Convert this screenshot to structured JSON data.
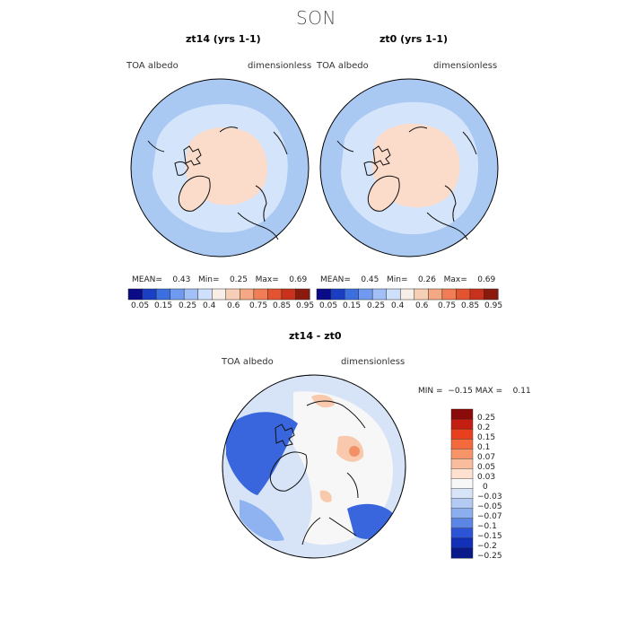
{
  "figure": {
    "title": "SON"
  },
  "panels": [
    {
      "id": "zt14",
      "title": "zt14 (yrs 1-1)",
      "variable": "TOA albedo",
      "units": "dimensionless",
      "stats": {
        "mean_label": "MEAN=",
        "mean": "0.43",
        "min_label": "Min=",
        "min": "0.25",
        "max_label": "Max=",
        "max": "0.69"
      }
    },
    {
      "id": "zt0",
      "title": "zt0 (yrs 1-1)",
      "variable": "TOA albedo",
      "units": "dimensionless",
      "stats": {
        "mean_label": "MEAN=",
        "mean": "0.45",
        "min_label": "Min=",
        "min": "0.26",
        "max_label": "Max=",
        "max": "0.69"
      }
    }
  ],
  "shared_colorbar": {
    "colors": [
      "#0b0b8a",
      "#1a3fc4",
      "#3b6fe0",
      "#6f9af0",
      "#a2c0f6",
      "#cfe0fb",
      "#f7eee8",
      "#f7cfb6",
      "#f4a884",
      "#f07d55",
      "#e4532f",
      "#c8321c",
      "#8b1a0e"
    ],
    "labels": [
      "0.05",
      "0.15",
      "0.25",
      "0.4",
      "0.6",
      "0.75",
      "0.85",
      "0.95"
    ]
  },
  "diff_panel": {
    "title": "zt14 - zt0",
    "variable": "TOA albedo",
    "units": "dimensionless",
    "stats_text": "MIN =  −0.15 MAX =    0.11",
    "colorbar": {
      "colors": [
        "#8b0a0a",
        "#c41e12",
        "#e8401e",
        "#f56a3c",
        "#f89568",
        "#f9bc9c",
        "#fde0cf",
        "#f7f7f7",
        "#d7e4f8",
        "#b3cbf3",
        "#8aaeee",
        "#5c86e6",
        "#2c54d6",
        "#1230b8",
        "#0a1a8a"
      ],
      "labels": [
        "0.25",
        "0.2",
        "0.15",
        "0.1",
        "0.07",
        "0.05",
        "0.03",
        "0",
        "−0.03",
        "−0.05",
        "−0.07",
        "−0.1",
        "−0.15",
        "−0.2",
        "−0.25"
      ]
    }
  },
  "map_colors": {
    "ocean_blue": "#a9c8f2",
    "light_blue": "#d4e5fb",
    "ice_peach": "#fbdccb",
    "diff_white": "#f7f7f7",
    "diff_blue": "#3a66dd",
    "diff_midblue": "#8fb2f0",
    "diff_peach": "#f9c9ad",
    "diff_orange": "#f29066"
  }
}
